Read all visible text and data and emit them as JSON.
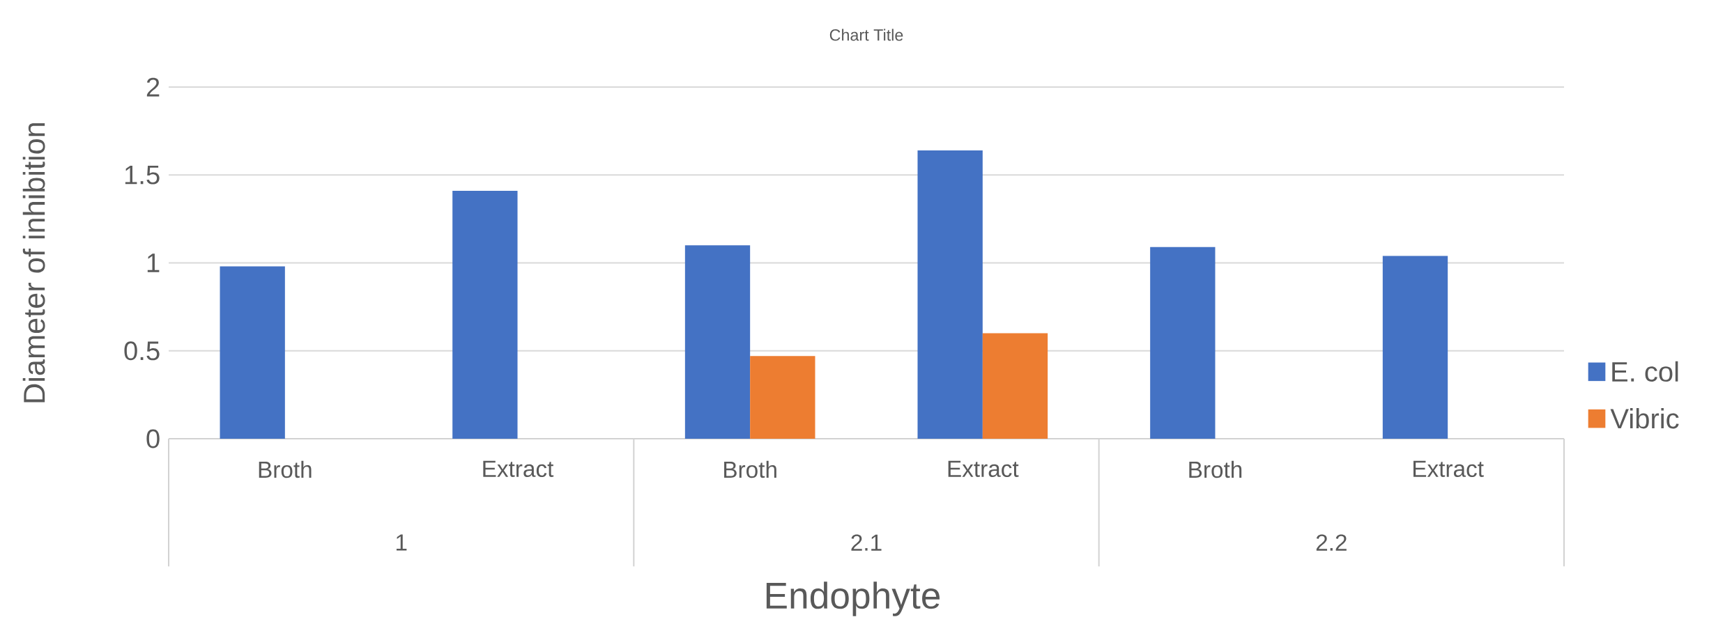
{
  "chart_data": {
    "type": "bar",
    "title": "Chart Title",
    "xlabel": "Endophyte",
    "ylabel": "Diameter of inhibition",
    "categories": [
      "Broth",
      "Extract",
      "Broth",
      "Extract",
      "Broth",
      "Extract"
    ],
    "annotations": [
      "1",
      "2.1",
      "2.2"
    ],
    "series": [
      {
        "name": "E. col",
        "color": "#4472c4",
        "values": [
          0.98,
          1.41,
          1.1,
          1.64,
          1.09,
          1.04
        ]
      },
      {
        "name": "Vibric",
        "color": "#ed7d31",
        "values": [
          null,
          null,
          0.47,
          0.6,
          null,
          null
        ]
      }
    ],
    "ylim": [
      0,
      2
    ],
    "yticks": [
      0,
      0.5,
      1,
      1.5,
      2
    ],
    "grid": "y",
    "legend": "right"
  }
}
